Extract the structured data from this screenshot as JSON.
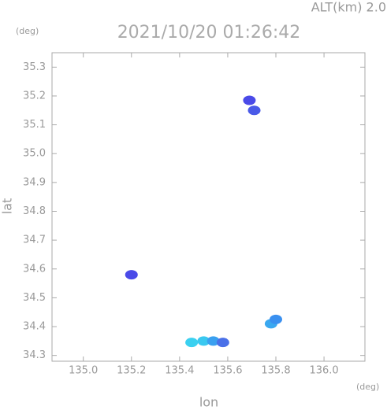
{
  "chart_data": {
    "type": "scatter",
    "top_label": "ALT(km) 2.0",
    "title": "2021/10/20 01:26:42",
    "y_unit": "(deg)",
    "x_unit": "(deg)",
    "xlabel": "lon",
    "ylabel": "lat",
    "x": [
      135.2,
      135.69,
      135.71,
      135.78,
      135.8,
      135.45,
      135.5,
      135.54,
      135.58
    ],
    "values": [
      34.58,
      35.185,
      35.15,
      34.41,
      34.425,
      34.345,
      34.35,
      34.35,
      34.345
    ],
    "colors": [
      "#4a4ae8",
      "#4a4ae8",
      "#4a5ae8",
      "#3aa8f0",
      "#3a90f0",
      "#3ad0f0",
      "#3ac8f0",
      "#3aa0f0",
      "#4a70e8"
    ],
    "xlim": [
      134.87,
      136.17
    ],
    "ylim": [
      34.28,
      35.35
    ],
    "xticks": [
      {
        "value": 135.0,
        "label": "135.0"
      },
      135.2,
      135.4,
      135.6,
      135.8,
      {
        "value": 136.0,
        "label": "136.0"
      }
    ],
    "yticks": [
      34.3,
      34.4,
      34.5,
      34.6,
      34.7,
      34.8,
      34.9,
      {
        "value": 35.0,
        "label": "35.0"
      },
      35.1,
      35.2,
      35.3
    ]
  }
}
